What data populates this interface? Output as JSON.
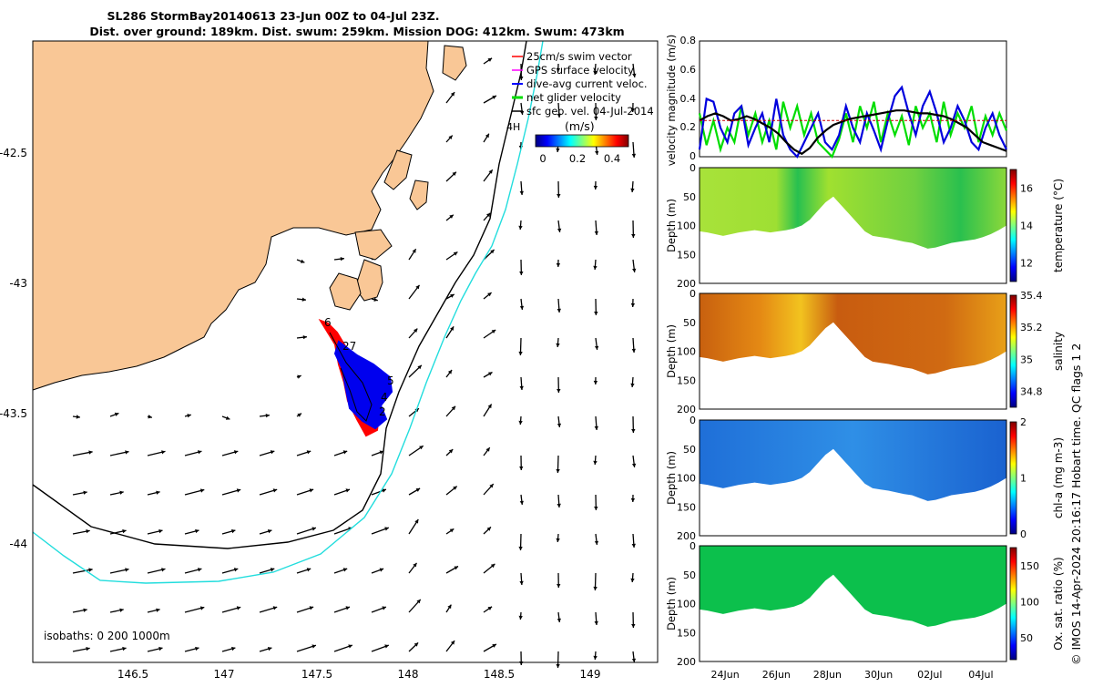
{
  "header": {
    "title_line1": "SL286 StormBay20140613 23-Jun 00Z to 04-Jul 23Z.",
    "title_line2": "Dist. over ground: 189km. Dist. swum: 259km. Mission DOG: 412km. Swum: 473km"
  },
  "map": {
    "x_ticks": [
      "146.5",
      "147",
      "147.5",
      "148",
      "148.5",
      "149"
    ],
    "y_ticks": [
      "-42.5",
      "-43",
      "-43.5",
      "-44"
    ],
    "legend": [
      {
        "label": "25cm/s swim vector",
        "color": "#ff0000"
      },
      {
        "label": "GPS surface velocity",
        "color": "#ff00ff"
      },
      {
        "label": "dive-avg current veloc.",
        "color": "#0000ff"
      },
      {
        "label": "net glider velocity",
        "color": "#00dd00"
      },
      {
        "label": "sfc geo. vel. 04-Jul-2014",
        "color": "#000000"
      }
    ],
    "colorbar_label": "(m/s)",
    "colorbar_ticks": [
      "0",
      "0.2",
      "0.4"
    ],
    "isobath_label": "isobaths: 0   200  1000m",
    "track_labels": [
      "6",
      "27",
      "5",
      "4",
      "2"
    ],
    "corner_label": "4H",
    "colors": {
      "land": "#f9c796",
      "isobath_200": "#000000",
      "isobath_1000": "#22dddd",
      "track_a": "#ff0000",
      "track_b": "#0000ff"
    }
  },
  "chart_data": [
    {
      "type": "line",
      "ylabel": "velocity magnitude (m/s)",
      "ylim": [
        0,
        0.8
      ],
      "yticks": [
        "0",
        "0.2",
        "0.4",
        "0.6",
        "0.8"
      ],
      "xlim": [
        "2014-06-23",
        "2014-07-05"
      ],
      "series": [
        {
          "color": "#00dd00",
          "values": [
            0.3,
            0.08,
            0.25,
            0.05,
            0.2,
            0.1,
            0.35,
            0.15,
            0.3,
            0.1,
            0.25,
            0.05,
            0.38,
            0.2,
            0.35,
            0.15,
            0.3,
            0.1,
            0.05,
            0.0,
            0.12,
            0.3,
            0.1,
            0.35,
            0.2,
            0.38,
            0.1,
            0.3,
            0.15,
            0.28,
            0.08,
            0.35,
            0.2,
            0.3,
            0.1,
            0.38,
            0.15,
            0.3,
            0.2,
            0.35,
            0.1,
            0.28,
            0.15,
            0.3,
            0.18
          ]
        },
        {
          "color": "#0000dd",
          "values": [
            0.05,
            0.4,
            0.38,
            0.2,
            0.1,
            0.3,
            0.35,
            0.08,
            0.2,
            0.3,
            0.1,
            0.4,
            0.15,
            0.05,
            0.0,
            0.1,
            0.2,
            0.3,
            0.1,
            0.05,
            0.15,
            0.35,
            0.2,
            0.1,
            0.3,
            0.18,
            0.05,
            0.25,
            0.42,
            0.48,
            0.3,
            0.15,
            0.35,
            0.45,
            0.3,
            0.1,
            0.2,
            0.35,
            0.25,
            0.1,
            0.05,
            0.2,
            0.3,
            0.15,
            0.05
          ]
        },
        {
          "color": "#000000",
          "values": [
            0.25,
            0.28,
            0.3,
            0.28,
            0.25,
            0.26,
            0.28,
            0.26,
            0.23,
            0.2,
            0.16,
            0.1,
            0.05,
            0.02,
            0.06,
            0.13,
            0.18,
            0.22,
            0.24,
            0.26,
            0.27,
            0.28,
            0.29,
            0.3,
            0.31,
            0.32,
            0.32,
            0.31,
            0.3,
            0.3,
            0.29,
            0.28,
            0.26,
            0.23,
            0.2,
            0.15,
            0.1,
            0.08,
            0.06,
            0.04
          ]
        },
        {
          "color": "#cc0000",
          "values": [
            0.25,
            0.25
          ]
        }
      ]
    },
    {
      "type": "heatmap",
      "ylabel": "Depth (m)",
      "colorbar_label": "temperature (°C)",
      "colorbar_ticks": [
        "12",
        "14",
        "16"
      ],
      "clim": [
        11,
        17
      ],
      "yticks": [
        "0",
        "50",
        "100",
        "150",
        "200"
      ],
      "ylim": [
        0,
        200
      ],
      "value": 14.6
    },
    {
      "type": "heatmap",
      "ylabel": "Depth (m)",
      "colorbar_label": "salinity",
      "colorbar_ticks": [
        "34.8",
        "35",
        "35.2",
        "35.4"
      ],
      "clim": [
        34.7,
        35.4
      ],
      "yticks": [
        "0",
        "50",
        "100",
        "150",
        "200"
      ],
      "ylim": [
        0,
        200
      ],
      "value": 35.3
    },
    {
      "type": "heatmap",
      "ylabel": "Depth (m)",
      "colorbar_label": "chl-a (mg m-3)",
      "colorbar_ticks": [
        "0",
        "1",
        "2"
      ],
      "clim": [
        0,
        2
      ],
      "yticks": [
        "0",
        "50",
        "100",
        "150",
        "200"
      ],
      "ylim": [
        0,
        200
      ],
      "value": 0.5
    },
    {
      "type": "heatmap",
      "ylabel": "Depth (m)",
      "colorbar_label": "Ox. sat. ratio (%)",
      "colorbar_ticks": [
        "50",
        "100",
        "150"
      ],
      "clim": [
        20,
        175
      ],
      "yticks": [
        "0",
        "50",
        "100",
        "150",
        "200"
      ],
      "ylim": [
        0,
        200
      ],
      "value": 100,
      "xticks": [
        "24Jun",
        "26Jun",
        "28Jun",
        "30Jun",
        "02Jul",
        "04Jul"
      ]
    }
  ],
  "section_profile_depth_m": [
    110,
    112,
    115,
    118,
    115,
    112,
    110,
    108,
    110,
    112,
    110,
    108,
    105,
    100,
    90,
    75,
    60,
    50,
    65,
    80,
    95,
    110,
    118,
    120,
    122,
    125,
    128,
    130,
    135,
    140,
    138,
    134,
    130,
    128,
    126,
    124,
    120,
    115,
    108,
    100
  ],
  "footer": "© IMOS 14-Apr-2024 20:16:17 Hobart time. QC flags 1  2"
}
